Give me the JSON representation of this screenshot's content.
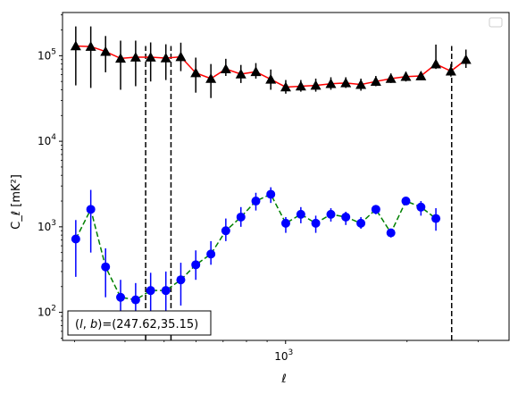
{
  "chart_data": {
    "type": "scatter",
    "title": "",
    "xlabel": "ℓ",
    "ylabel": "C_ℓ  [mK²]",
    "xscale": "log",
    "yscale": "log",
    "xlim": [
      280,
      3580
    ],
    "ylim": [
      47,
      320000
    ],
    "x_ticks": [
      {
        "value": 1000,
        "base": "10",
        "exp": "3"
      }
    ],
    "y_ticks": [
      {
        "value": 100,
        "base": "10",
        "exp": "2"
      },
      {
        "value": 1000,
        "base": "10",
        "exp": "3"
      },
      {
        "value": 10000,
        "base": "10",
        "exp": "4"
      },
      {
        "value": 100000,
        "base": "10",
        "exp": "5"
      }
    ],
    "grid": false,
    "legend": {
      "placement": "top-right",
      "entries": []
    },
    "annotation": "(l, b)=(247.62,35.15)",
    "annotation_parts": {
      "l": "l",
      "b": "b",
      "value": "=(247.62,35.15)"
    },
    "vlines": [
      450,
      520,
      2580
    ],
    "series": [
      {
        "marker": "triangle",
        "color": "#000000",
        "line_color": "#ff0000",
        "line_style": "solid",
        "x": [
          302,
          329,
          358,
          390,
          425,
          463,
          505,
          550,
          599,
          653,
          711,
          775,
          844,
          919,
          1001,
          1091,
          1188,
          1295,
          1410,
          1537,
          1674,
          1824,
          1987,
          2165,
          2358,
          2569,
          2799,
          3049
        ],
        "y": [
          130000,
          128000,
          112000,
          93000,
          96000,
          96000,
          94000,
          97000,
          63000,
          54000,
          70000,
          61000,
          65000,
          53000,
          43000,
          44000,
          45000,
          47000,
          48000,
          46000,
          50000,
          54000,
          57000,
          58000,
          80000,
          66000,
          90000,
          0
        ],
        "y_low": [
          45000,
          42000,
          64000,
          40000,
          44000,
          50000,
          52000,
          66000,
          37000,
          32000,
          58000,
          48000,
          54000,
          40000,
          36000,
          38000,
          38000,
          40000,
          42000,
          39000,
          44000,
          48000,
          50000,
          52000,
          70000,
          57000,
          72000,
          0
        ],
        "y_high": [
          220000,
          220000,
          170000,
          150000,
          150000,
          143000,
          136000,
          142000,
          95000,
          80000,
          92000,
          78000,
          82000,
          69000,
          52000,
          52000,
          54000,
          56000,
          56000,
          54000,
          58000,
          62000,
          65000,
          65000,
          135000,
          80000,
          118000,
          0
        ]
      },
      {
        "marker": "circle",
        "color": "#0000ff",
        "line_color": "#008000",
        "line_style": "dashed",
        "x": [
          302,
          329,
          358,
          390,
          425,
          463,
          505,
          550,
          599,
          653,
          711,
          775,
          844,
          919,
          1001,
          1091,
          1188,
          1295,
          1410,
          1537,
          1674,
          1824,
          1987,
          2165,
          2358,
          2569,
          2799,
          3049
        ],
        "y": [
          720,
          1600,
          340,
          150,
          140,
          180,
          180,
          240,
          360,
          480,
          900,
          1300,
          2000,
          2400,
          1100,
          1400,
          1100,
          1400,
          1300,
          1100,
          1600,
          850,
          2000,
          1700,
          1250,
          0,
          0,
          0
        ],
        "y_low": [
          260,
          500,
          150,
          90,
          100,
          100,
          100,
          120,
          240,
          360,
          680,
          1000,
          1550,
          1900,
          850,
          1100,
          850,
          1150,
          1050,
          950,
          1400,
          750,
          1800,
          1350,
          900,
          0,
          0,
          0
        ],
        "y_high": [
          1200,
          2700,
          560,
          240,
          220,
          290,
          300,
          380,
          530,
          680,
          1250,
          1700,
          2500,
          2900,
          1300,
          1700,
          1350,
          1650,
          1500,
          1300,
          1800,
          950,
          2200,
          2000,
          1650,
          0,
          0,
          0
        ]
      }
    ]
  }
}
